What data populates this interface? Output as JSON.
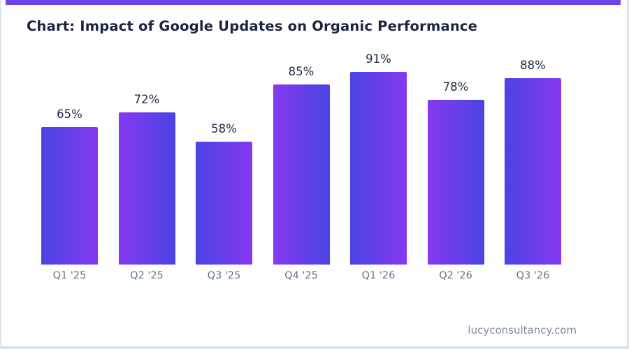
{
  "title_bar": {
    "title": "Chart: Impact of Google Updates on Organic Performance"
  },
  "footer": {
    "text": "lucyconsultancy.com"
  },
  "colors": {
    "accent": "#6b46e9",
    "bar-blue": "#4a44e3",
    "bar-purple": "#8639f0",
    "title": "#1d2342",
    "axis-label": "#64748b",
    "value-label": "#1f2943",
    "footer": "#7b8aa3",
    "border": "#dce3ee"
  },
  "chart_data": {
    "type": "bar",
    "title": "Chart: Impact of Google Updates on Organic Performance",
    "categories": [
      "Q1 '25",
      "Q2 '25",
      "Q3 '25",
      "Q4 '25",
      "Q1 '26",
      "Q2 '26",
      "Q3 '26"
    ],
    "values": [
      65,
      72,
      58,
      85,
      91,
      78,
      88
    ],
    "value_suffix": "%",
    "data_labels": [
      "65%",
      "72%",
      "58%",
      "85%",
      "91%",
      "78%",
      "88%"
    ],
    "xlabel": "",
    "ylabel": "",
    "ylim": [
      0,
      100
    ],
    "grid": false,
    "legend": false,
    "y_axis_visible": false,
    "bar_fill": "alternating horizontal gradient blue-purple / purple-blue"
  }
}
